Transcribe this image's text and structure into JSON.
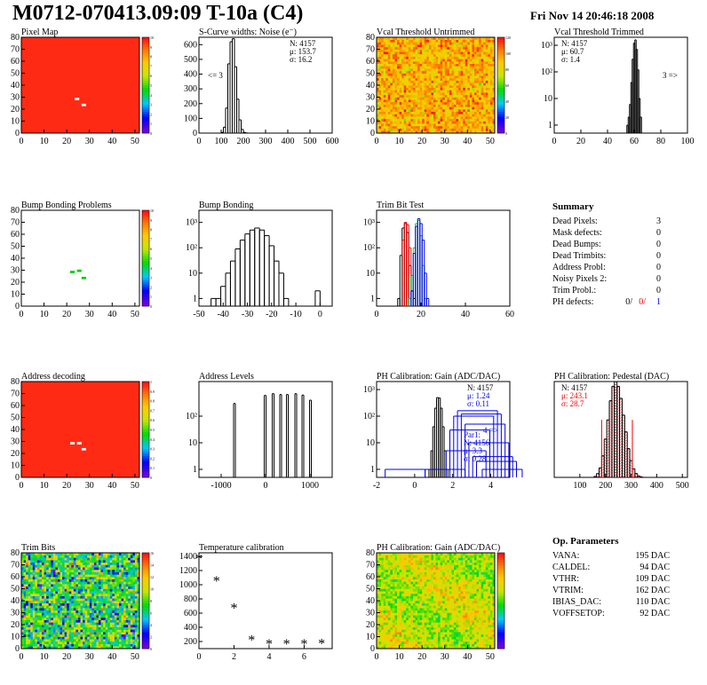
{
  "header": {
    "title": "M0712-070413.09:09 T-10a (C4)",
    "date": "Fri Nov 14 20:46:18 2008"
  },
  "colors": {
    "background": "#ffffff",
    "map_red": "#ff2a14",
    "blue": "#0000ee",
    "green": "#00cc00",
    "red": "#ee0000",
    "black": "#000000"
  },
  "chart_data": [
    {
      "type": "heatmap",
      "title": "Pixel Map",
      "xlim": [
        0,
        52
      ],
      "ylim": [
        0,
        80
      ],
      "xticks": [
        "0",
        "10",
        "20",
        "30",
        "40",
        "50"
      ],
      "yticks": [
        "0",
        "10",
        "20",
        "30",
        "40",
        "50",
        "60",
        "70",
        "80"
      ],
      "palette_ticks": [
        "0",
        "1",
        "2",
        "3",
        "4",
        "5",
        "6",
        "7",
        "8",
        "9",
        "10"
      ],
      "cells": [
        {
          "x": 24.5,
          "y": 28.5
        },
        {
          "x": 27.5,
          "y": 23.5
        }
      ]
    },
    {
      "type": "bar",
      "title": "S-Curve widths: Noise (e⁻)",
      "xlim": [
        0,
        600
      ],
      "ylim": [
        0,
        650
      ],
      "xticks": [
        "0",
        "100",
        "200",
        "300",
        "400",
        "500",
        "600"
      ],
      "yticks": [
        "0",
        "100",
        "200",
        "300",
        "400",
        "500",
        "600"
      ],
      "stats": [
        {
          "label": "N:",
          "value": "4157"
        },
        {
          "label": "μ:",
          "value": "153.7"
        },
        {
          "label": "σ:",
          "value": "16.2"
        }
      ],
      "annotation": "<= 3",
      "series": [
        {
          "x": [
            105,
            115,
            125,
            135,
            145,
            155,
            165,
            175,
            185,
            195,
            205,
            215
          ],
          "values": [
            5,
            40,
            170,
            470,
            620,
            640,
            450,
            230,
            90,
            25,
            5,
            1
          ]
        }
      ]
    },
    {
      "type": "heatmap",
      "title": "Vcal Threshold Untrimmed",
      "xlim": [
        0,
        52
      ],
      "ylim": [
        0,
        80
      ],
      "xticks": [
        "0",
        "10",
        "20",
        "30",
        "40",
        "50"
      ],
      "yticks": [
        "0",
        "10",
        "20",
        "30",
        "40",
        "50",
        "60",
        "70",
        "80"
      ],
      "palette_ticks": [
        "0",
        "20",
        "40",
        "60",
        "80",
        "100",
        "120"
      ]
    },
    {
      "type": "bar",
      "title": "Vcal Threshold Trimmed",
      "xlim": [
        0,
        100
      ],
      "ylim": [
        0.5,
        2000
      ],
      "log_y": true,
      "xticks": [
        "0",
        "20",
        "40",
        "60",
        "80",
        "100"
      ],
      "yticks": [
        "1",
        "10",
        "10²",
        "10³"
      ],
      "stats": [
        {
          "label": "N:",
          "value": "4157"
        },
        {
          "label": "μ:",
          "value": "60.7"
        },
        {
          "label": "σ:",
          "value": "1.4"
        }
      ],
      "annotation": "3 =>",
      "series": [
        {
          "x": [
            55,
            56,
            57,
            58,
            59,
            60,
            61,
            62,
            63,
            64,
            65
          ],
          "values": [
            1,
            2,
            6,
            40,
            300,
            1200,
            1600,
            700,
            120,
            10,
            2
          ]
        }
      ]
    },
    {
      "type": "heatmap",
      "title": "Bump Bonding Problems",
      "xlim": [
        0,
        52
      ],
      "ylim": [
        0,
        80
      ],
      "xticks": [
        "0",
        "10",
        "20",
        "30",
        "40",
        "50"
      ],
      "yticks": [
        "0",
        "10",
        "20",
        "30",
        "40",
        "50",
        "60",
        "70",
        "80"
      ],
      "palette_ticks": [
        "0",
        "1",
        "2",
        "3",
        "4",
        "5",
        "6",
        "7",
        "8",
        "9",
        "10"
      ],
      "cells": [
        {
          "x": 22.5,
          "y": 28.5
        },
        {
          "x": 25.5,
          "y": 29.5
        },
        {
          "x": 27.5,
          "y": 23.5
        }
      ]
    },
    {
      "type": "bar",
      "title": "Bump Bonding",
      "xlim": [
        -50,
        5
      ],
      "ylim": [
        0.5,
        3000
      ],
      "log_y": true,
      "xticks": [
        "-50",
        "-40",
        "-30",
        "-20",
        "-10",
        "0"
      ],
      "yticks": [
        "1",
        "10",
        "10²",
        "10³"
      ],
      "series": [
        {
          "x": [
            -44,
            -42,
            -40,
            -38,
            -36,
            -34,
            -32,
            -30,
            -28,
            -26,
            -24,
            -22,
            -20,
            -18,
            -16,
            -14,
            -1
          ],
          "values": [
            1,
            1,
            3,
            10,
            30,
            90,
            200,
            350,
            500,
            600,
            500,
            300,
            120,
            30,
            10,
            1,
            2
          ]
        }
      ]
    },
    {
      "type": "bar",
      "title": "Trim Bit Test",
      "xlim": [
        0,
        60
      ],
      "ylim": [
        0.5,
        3000
      ],
      "log_y": true,
      "xticks": [
        "0",
        "20",
        "40",
        "60"
      ],
      "yticks": [
        "1",
        "10",
        "10²",
        "10³"
      ],
      "series": [
        {
          "color": "#000000",
          "x": [
            10,
            11,
            12,
            13,
            14,
            15,
            16,
            17
          ],
          "values": [
            1,
            50,
            600,
            900,
            400,
            20,
            2,
            1
          ]
        },
        {
          "color": "#ee0000",
          "x": [
            12,
            13,
            14,
            15,
            16
          ],
          "values": [
            200,
            1000,
            800,
            100,
            2
          ]
        },
        {
          "color": "#00cc00",
          "x": [
            15,
            16,
            17,
            18,
            19,
            20,
            21,
            22
          ],
          "values": [
            1,
            8,
            100,
            900,
            1200,
            300,
            20,
            1
          ]
        },
        {
          "color": "#0000ee",
          "x": [
            16,
            17,
            18,
            19,
            20,
            21,
            22,
            23
          ],
          "values": [
            2,
            60,
            700,
            1400,
            900,
            200,
            10,
            1
          ]
        }
      ]
    },
    {
      "type": "table",
      "title": "Summary",
      "rows": [
        {
          "label": "Dead Pixels:",
          "value": "3"
        },
        {
          "label": "Mask defects:",
          "value": "0"
        },
        {
          "label": "Dead Bumps:",
          "value": "0"
        },
        {
          "label": "Dead Trimbits:",
          "value": "0"
        },
        {
          "label": "Address Probl:",
          "value": "0"
        },
        {
          "label": "Noisy Pixels 2:",
          "value": "0"
        },
        {
          "label": "Trim Probl.:",
          "value": "0"
        }
      ],
      "ph_label": "PH defects:",
      "ph_values": [
        {
          "value": "0/",
          "color": "#000000"
        },
        {
          "value": "0/",
          "color": "#ee0000"
        },
        {
          "value": "1",
          "color": "#0000ee"
        }
      ]
    },
    {
      "type": "heatmap",
      "title": "Address decoding",
      "xlim": [
        0,
        52
      ],
      "ylim": [
        0,
        80
      ],
      "xticks": [
        "0",
        "10",
        "20",
        "30",
        "40",
        "50"
      ],
      "yticks": [
        "0",
        "10",
        "20",
        "30",
        "40",
        "50",
        "60",
        "70",
        "80"
      ],
      "palette_ticks": [
        "0",
        "0.1",
        "0.2",
        "0.3",
        "0.4",
        "0.5",
        "0.6",
        "0.7",
        "0.8",
        "0.9",
        "1"
      ],
      "cells": [
        {
          "x": 22.5,
          "y": 28.5
        },
        {
          "x": 25.5,
          "y": 28.5
        },
        {
          "x": 27.5,
          "y": 23.5
        }
      ]
    },
    {
      "type": "bar",
      "title": "Address Levels",
      "xlim": [
        -1500,
        1500
      ],
      "ylim": [
        0.5,
        2000
      ],
      "log_y": true,
      "xticks": [
        "-1000",
        "0",
        "1000"
      ],
      "yticks": [
        "1",
        "10",
        "10²"
      ],
      "series": [
        {
          "x": [
            -700,
            -10,
            170,
            340,
            490,
            680,
            840,
            1010
          ],
          "values": [
            300,
            600,
            700,
            650,
            650,
            700,
            620,
            400
          ]
        }
      ]
    },
    {
      "type": "bar",
      "title": "PH Calibration: Gain (ADC/DAC)",
      "xlim": [
        -2,
        5
      ],
      "ylim": [
        0.5,
        2000
      ],
      "log_y": true,
      "xticks": [
        "-2",
        "0",
        "2",
        "4"
      ],
      "yticks": [
        "1",
        "10",
        "10²",
        "10³"
      ],
      "stats": [
        {
          "label": "N:",
          "value": "4157"
        },
        {
          "label": "μ:",
          "value": "1.24"
        },
        {
          "label": "σ:",
          "value": "0.11"
        }
      ],
      "stats2": [
        {
          "label": "Par1:",
          "value": ""
        },
        {
          "label": "N:",
          "value": "4156"
        },
        {
          "label": "μ:",
          "value": "3.3"
        },
        {
          "label": "σ:",
          "value": "0.28"
        }
      ],
      "annotation": "4 =>",
      "series": [
        {
          "color": "#000000",
          "x": [
            0.8,
            0.9,
            1.0,
            1.1,
            1.2,
            1.3,
            1.4,
            1.5,
            1.6,
            1.7
          ],
          "values": [
            1,
            5,
            40,
            200,
            500,
            480,
            200,
            40,
            5,
            1
          ]
        },
        {
          "color": "#0000ee",
          "x": [
            -0.5,
            1.6,
            2.7,
            2.9,
            3.1,
            3.3,
            3.5,
            3.7,
            3.9,
            4.1,
            4.3,
            4.6
          ],
          "values": [
            1,
            1,
            5,
            30,
            100,
            160,
            120,
            50,
            10,
            3,
            2,
            1
          ]
        }
      ]
    },
    {
      "type": "bar",
      "title": "PH Calibration: Pedestal (DAC)",
      "xlim": [
        0,
        520
      ],
      "ylim": [
        0,
        200
      ],
      "xticks": [
        "100",
        "200",
        "300",
        "400",
        "500"
      ],
      "stats": [
        {
          "label": "N:",
          "value": "4157"
        },
        {
          "label": "μ:",
          "value": "243.1"
        },
        {
          "label": "σ:",
          "value": "28.7"
        }
      ],
      "series": [
        {
          "x": [
            160,
            170,
            180,
            190,
            200,
            210,
            220,
            230,
            240,
            250,
            260,
            270,
            280,
            290,
            300,
            310,
            320,
            330,
            340
          ],
          "values": [
            2,
            8,
            20,
            45,
            80,
            120,
            160,
            190,
            200,
            190,
            165,
            130,
            95,
            60,
            35,
            18,
            8,
            3,
            1
          ]
        }
      ]
    },
    {
      "type": "heatmap",
      "title": "Trim Bits",
      "xlim": [
        0,
        52
      ],
      "ylim": [
        0,
        80
      ],
      "xticks": [
        "0",
        "10",
        "20",
        "30",
        "40",
        "50"
      ],
      "yticks": [
        "0",
        "10",
        "20",
        "30",
        "40",
        "50",
        "60",
        "70",
        "80"
      ],
      "palette_ticks": [
        "0",
        "2",
        "4",
        "6",
        "8",
        "10",
        "12",
        "14",
        "16"
      ]
    },
    {
      "type": "scatter",
      "title": "Temperature calibration",
      "xlim": [
        0,
        7.6
      ],
      "ylim": [
        100,
        1450
      ],
      "xticks": [
        "0",
        "2",
        "4",
        "6"
      ],
      "yticks": [
        "200",
        "400",
        "600",
        "800",
        "1000",
        "1200",
        "1400"
      ],
      "x": [
        0,
        1,
        2,
        3,
        4,
        5,
        6,
        7
      ],
      "y": [
        1360,
        1050,
        670,
        220,
        160,
        160,
        160,
        170
      ]
    },
    {
      "type": "heatmap",
      "title": "PH Calibration: Gain (ADC/DAC)",
      "xlim": [
        0,
        52
      ],
      "ylim": [
        0,
        80
      ],
      "xticks": [
        "0",
        "10",
        "20",
        "30",
        "40",
        "50"
      ],
      "yticks": [
        "0",
        "10",
        "20",
        "30",
        "40",
        "50",
        "60",
        "70",
        "80"
      ],
      "palette_ticks": [
        "",
        "",
        "",
        "",
        "",
        "",
        ""
      ]
    },
    {
      "type": "table",
      "title": "Op. Parameters",
      "rows": [
        {
          "label": "VANA:",
          "value": "195 DAC"
        },
        {
          "label": "CALDEL:",
          "value": "94 DAC"
        },
        {
          "label": "VTHR:",
          "value": "109 DAC"
        },
        {
          "label": "VTRIM:",
          "value": "162 DAC"
        },
        {
          "label": "IBIAS_DAC:",
          "value": "110 DAC"
        },
        {
          "label": "VOFFSETOP:",
          "value": "92 DAC"
        }
      ]
    }
  ]
}
